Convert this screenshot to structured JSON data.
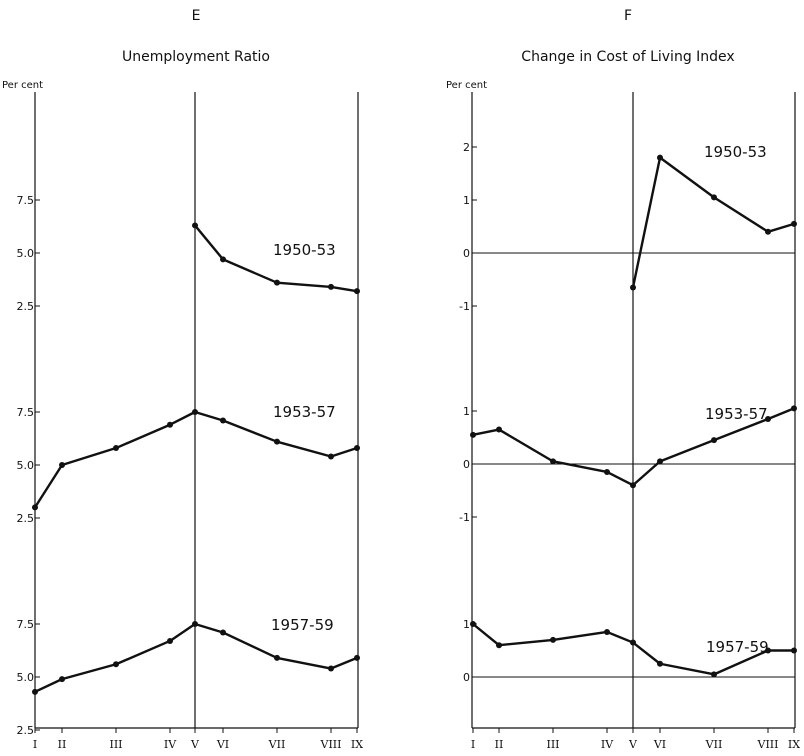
{
  "chart_data": [
    {
      "type": "line",
      "panel": "E",
      "title": "Unemployment Ratio",
      "ylabel": "Per cent",
      "categories": [
        "I",
        "II",
        "III",
        "IV",
        "V",
        "VI",
        "VII",
        "VIII",
        "IX"
      ],
      "x_values": [
        1,
        2,
        3,
        4,
        5,
        6,
        7,
        8,
        9
      ],
      "reference_x": "V",
      "series": [
        {
          "name": "1950-53",
          "x": [
            5,
            6,
            7,
            8,
            9
          ],
          "values": [
            6.3,
            4.7,
            3.6,
            3.4,
            3.2
          ],
          "ticks": [
            "7.5",
            "5.0",
            "2.5"
          ],
          "tick_values": [
            7.5,
            5.0,
            2.5
          ]
        },
        {
          "name": "1953-57",
          "x": [
            1,
            2,
            3,
            4,
            5,
            6,
            7,
            8,
            9
          ],
          "values": [
            3.0,
            5.0,
            5.8,
            6.9,
            7.5,
            7.1,
            6.1,
            5.4,
            5.8
          ],
          "ticks": [
            "7.5",
            "5.0",
            "2.5"
          ],
          "tick_values": [
            7.5,
            5.0,
            2.5
          ]
        },
        {
          "name": "1957-59",
          "x": [
            1,
            2,
            3,
            4,
            5,
            6,
            7,
            8,
            9
          ],
          "values": [
            4.3,
            4.9,
            5.6,
            6.7,
            7.5,
            7.1,
            5.9,
            5.4,
            5.9
          ],
          "ticks": [
            "7.5",
            "5.0",
            "2.5"
          ],
          "tick_values": [
            7.5,
            5.0,
            2.5
          ]
        }
      ]
    },
    {
      "type": "line",
      "panel": "F",
      "title": "Change in Cost of Living Index",
      "ylabel": "Per cent",
      "categories": [
        "I",
        "II",
        "III",
        "IV",
        "V",
        "VI",
        "VII",
        "VIII",
        "IX"
      ],
      "x_values": [
        1,
        2,
        3,
        4,
        5,
        6,
        7,
        8,
        9
      ],
      "reference_x": "V",
      "series": [
        {
          "name": "1950-53",
          "x": [
            5,
            6,
            7,
            8,
            9
          ],
          "values": [
            -0.65,
            1.8,
            1.05,
            0.4,
            0.55
          ],
          "ticks": [
            "2",
            "1",
            "0",
            "-1"
          ],
          "tick_values": [
            2,
            1,
            0,
            -1
          ]
        },
        {
          "name": "1953-57",
          "x": [
            1,
            2,
            3,
            4,
            5,
            6,
            7,
            8,
            9
          ],
          "values": [
            0.55,
            0.65,
            0.05,
            -0.15,
            -0.4,
            0.05,
            0.45,
            0.85,
            1.05
          ],
          "ticks": [
            "1",
            "0",
            "-1"
          ],
          "tick_values": [
            1,
            0,
            -1
          ]
        },
        {
          "name": "1957-59",
          "x": [
            1,
            2,
            3,
            4,
            5,
            6,
            7,
            8,
            9
          ],
          "values": [
            1.0,
            0.6,
            0.7,
            0.85,
            0.65,
            0.25,
            0.05,
            0.5,
            0.5
          ],
          "ticks": [
            "1",
            "0"
          ],
          "tick_values": [
            1,
            0
          ]
        }
      ]
    }
  ]
}
